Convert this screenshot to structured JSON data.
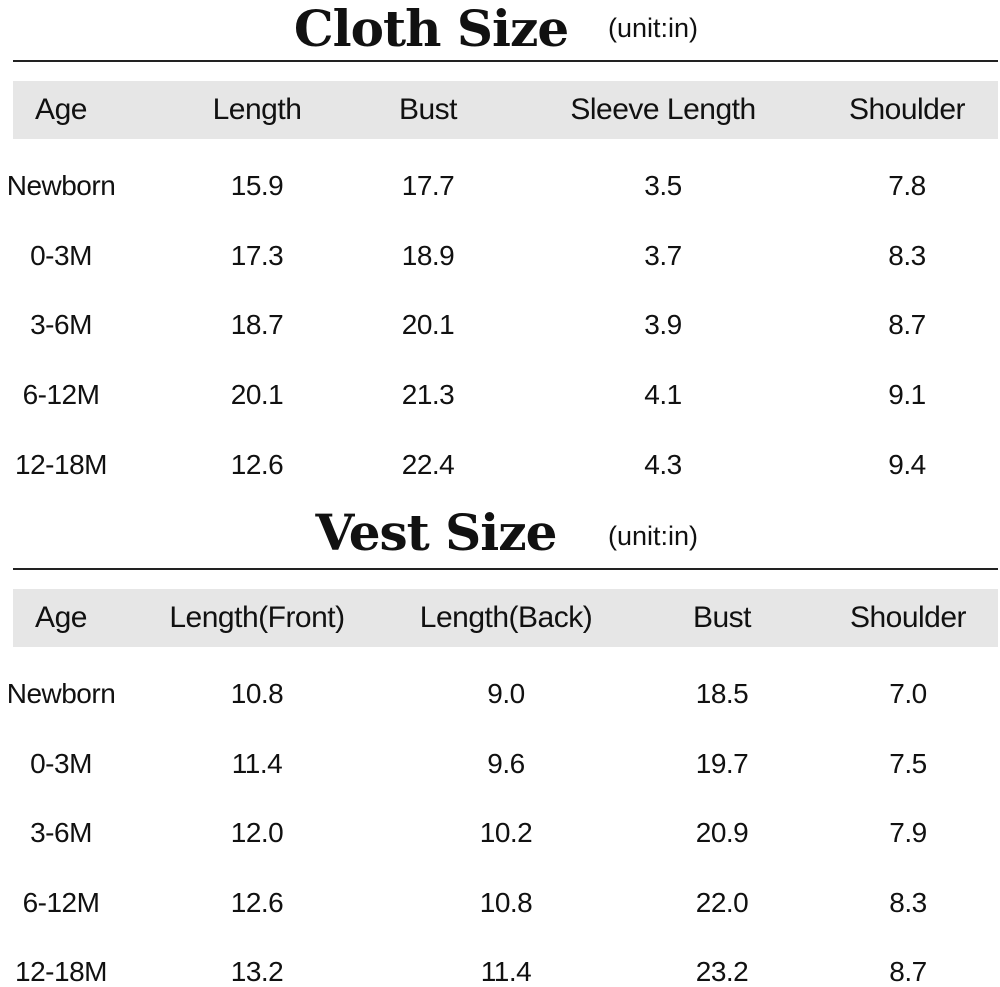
{
  "cloth": {
    "title": "Cloth Size",
    "unit": "(unit:in)",
    "headers": [
      "Age",
      "Length",
      "Bust",
      "Sleeve Length",
      "Shoulder"
    ],
    "rows": [
      [
        "Newborn",
        "15.9",
        "17.7",
        "3.5",
        "7.8"
      ],
      [
        "0-3M",
        "17.3",
        "18.9",
        "3.7",
        "8.3"
      ],
      [
        "3-6M",
        "18.7",
        "20.1",
        "3.9",
        "8.7"
      ],
      [
        "6-12M",
        "20.1",
        "21.3",
        "4.1",
        "9.1"
      ],
      [
        "12-18M",
        "12.6",
        "22.4",
        "4.3",
        "9.4"
      ]
    ]
  },
  "vest": {
    "title": "Vest Size",
    "unit": "(unit:in)",
    "headers": [
      "Age",
      "Length(Front)",
      "Length(Back)",
      "Bust",
      "Shoulder"
    ],
    "rows": [
      [
        "Newborn",
        "10.8",
        "9.0",
        "18.5",
        "7.0"
      ],
      [
        "0-3M",
        "11.4",
        "9.6",
        "19.7",
        "7.5"
      ],
      [
        "3-6M",
        "12.0",
        "10.2",
        "20.9",
        "7.9"
      ],
      [
        "6-12M",
        "12.6",
        "10.8",
        "22.0",
        "8.3"
      ],
      [
        "12-18M",
        "13.2",
        "11.4",
        "23.2",
        "8.7"
      ]
    ]
  }
}
